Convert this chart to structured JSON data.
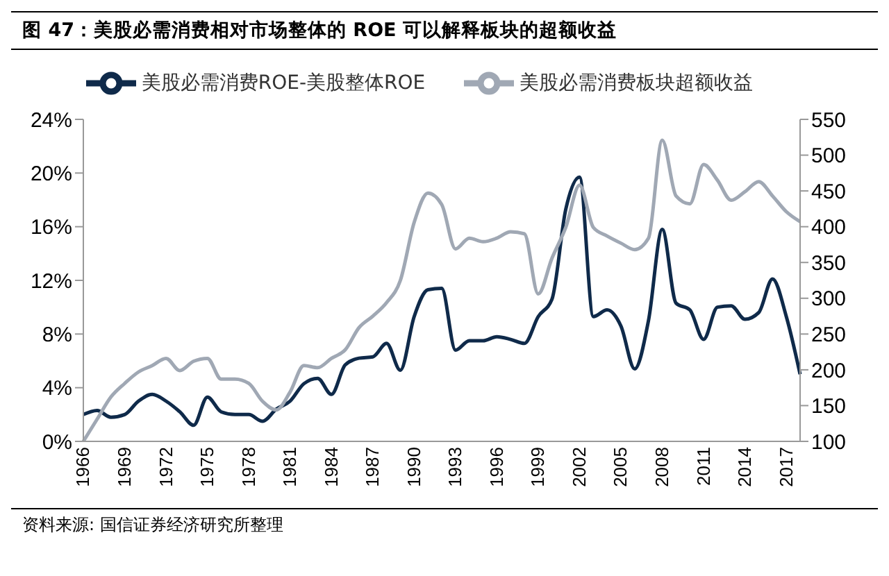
{
  "chart_data": {
    "type": "line",
    "title": "图 47：美股必需消费相对市场整体的 ROE 可以解释板块的超额收益",
    "categories": [
      "1966",
      null,
      null,
      "1969",
      null,
      null,
      "1972",
      null,
      null,
      "1975",
      null,
      null,
      "1978",
      null,
      null,
      "1981",
      null,
      null,
      "1984",
      null,
      null,
      "1987",
      null,
      null,
      "1990",
      null,
      null,
      "1993",
      null,
      null,
      "1996",
      null,
      null,
      "1999",
      null,
      null,
      "2002",
      null,
      null,
      "2005",
      null,
      null,
      "2008",
      null,
      null,
      "2011",
      null,
      null,
      "2014",
      null,
      null,
      "2017",
      null
    ],
    "series": [
      {
        "name": "美股必需消费ROE-美股整体ROE",
        "color": "#0f2a4a",
        "values": [
          2.0,
          2.3,
          1.8,
          2.0,
          3.0,
          3.5,
          3.0,
          2.2,
          1.2,
          3.3,
          2.2,
          2.0,
          2.0,
          1.5,
          2.4,
          3.0,
          4.3,
          4.7,
          3.5,
          5.7,
          6.2,
          6.3,
          7.3,
          5.3,
          9.3,
          11.3,
          11.4,
          6.8,
          7.5,
          7.5,
          7.8,
          7.6,
          7.3,
          9.3,
          10.6,
          17.3,
          19.7,
          9.3,
          9.8,
          8.6,
          5.4,
          9.0,
          15.8,
          10.3,
          9.8,
          7.6,
          10.0,
          10.1,
          9.1,
          9.6,
          12.1,
          9.3,
          5.0
        ]
      },
      {
        "name": "美股必需消费板块超额收益",
        "color": "#a0a8b4",
        "axis": "y2",
        "values": [
          100,
          131,
          162,
          181,
          197,
          206,
          216,
          199,
          212,
          216,
          187,
          187,
          181,
          156,
          144,
          169,
          206,
          203,
          216,
          228,
          259,
          275,
          294,
          325,
          406,
          447,
          431,
          369,
          384,
          379,
          384,
          393,
          390,
          306,
          356,
          399,
          458,
          399,
          387,
          377,
          368,
          384,
          521,
          443,
          432,
          487,
          465,
          437,
          449,
          463,
          443,
          421,
          407
        ]
      }
    ],
    "ylim": [
      0,
      24
    ],
    "yticks": [
      {
        "value": 0,
        "label": "0%"
      },
      {
        "value": 4,
        "label": "4%"
      },
      {
        "value": 8,
        "label": "8%"
      },
      {
        "value": 12,
        "label": "12%"
      },
      {
        "value": 16,
        "label": "16%"
      },
      {
        "value": 20,
        "label": "20%"
      },
      {
        "value": 24,
        "label": "24%"
      }
    ],
    "y2lim": [
      100,
      550
    ],
    "y2ticks": [
      100,
      150,
      200,
      250,
      300,
      350,
      400,
      450,
      500,
      550
    ],
    "legend": "top",
    "grid": false,
    "marker": "none",
    "line_style": "solid",
    "annotations": [
      "资料来源: 国信证券经济研究所整理"
    ]
  }
}
